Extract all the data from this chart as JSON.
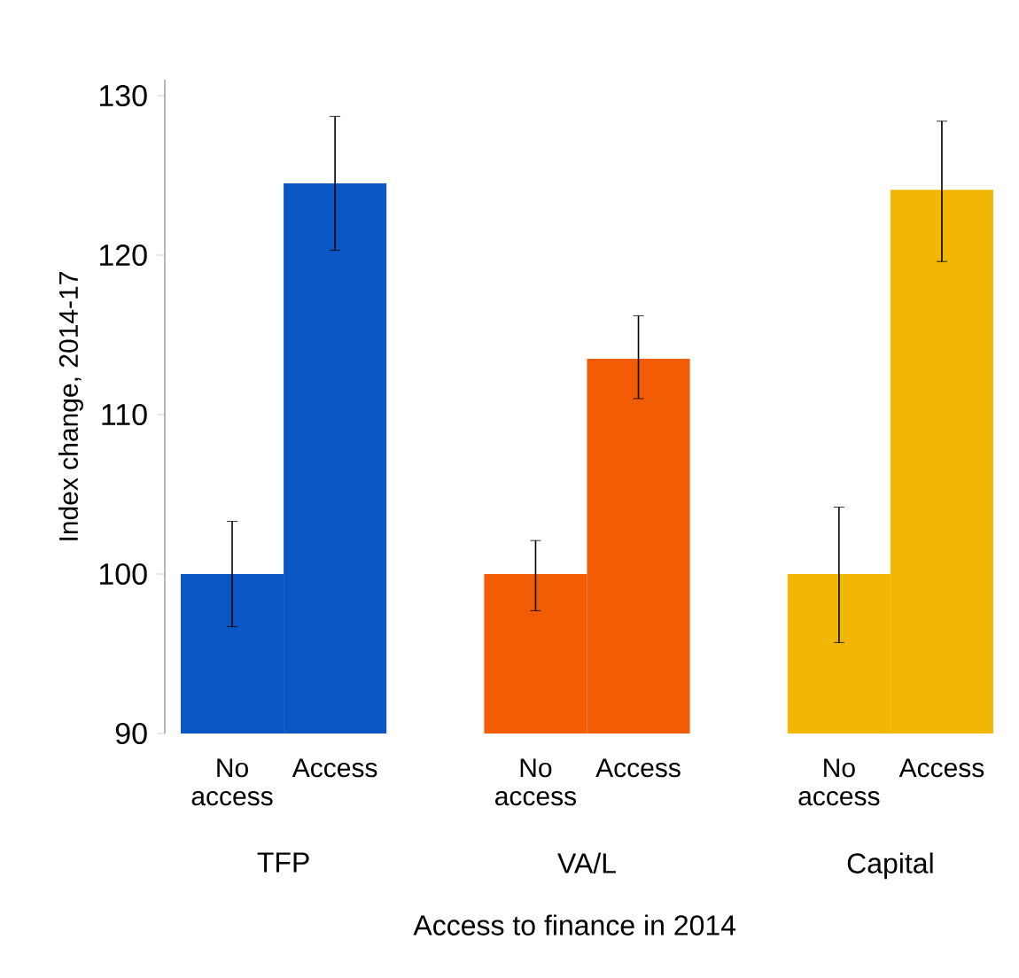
{
  "chart_data": {
    "type": "bar",
    "categories": [
      "TFP",
      "VA/L",
      "Capital"
    ],
    "xlabel": "Access to finance in 2014",
    "ylabel": "Index change, 2014-17",
    "ylim": [
      90,
      131
    ],
    "yticks": [
      90,
      100,
      110,
      120,
      130
    ],
    "grid": false,
    "series": [
      {
        "name": "No access",
        "colors": [
          "#0a56c2",
          "#f25c05",
          "#f2b705"
        ],
        "values": [
          100,
          100,
          100
        ],
        "errors": [
          [
            96.7,
            103.3
          ],
          [
            97.7,
            102.1
          ],
          [
            95.7,
            104.2
          ]
        ]
      },
      {
        "name": "Access",
        "colors": [
          "#0a56c2",
          "#f25c05",
          "#f2b705"
        ],
        "values": [
          124.5,
          113.5,
          124.1
        ],
        "errors": [
          [
            120.3,
            128.7
          ],
          [
            111.0,
            116.2
          ],
          [
            119.6,
            128.4
          ]
        ]
      }
    ]
  }
}
